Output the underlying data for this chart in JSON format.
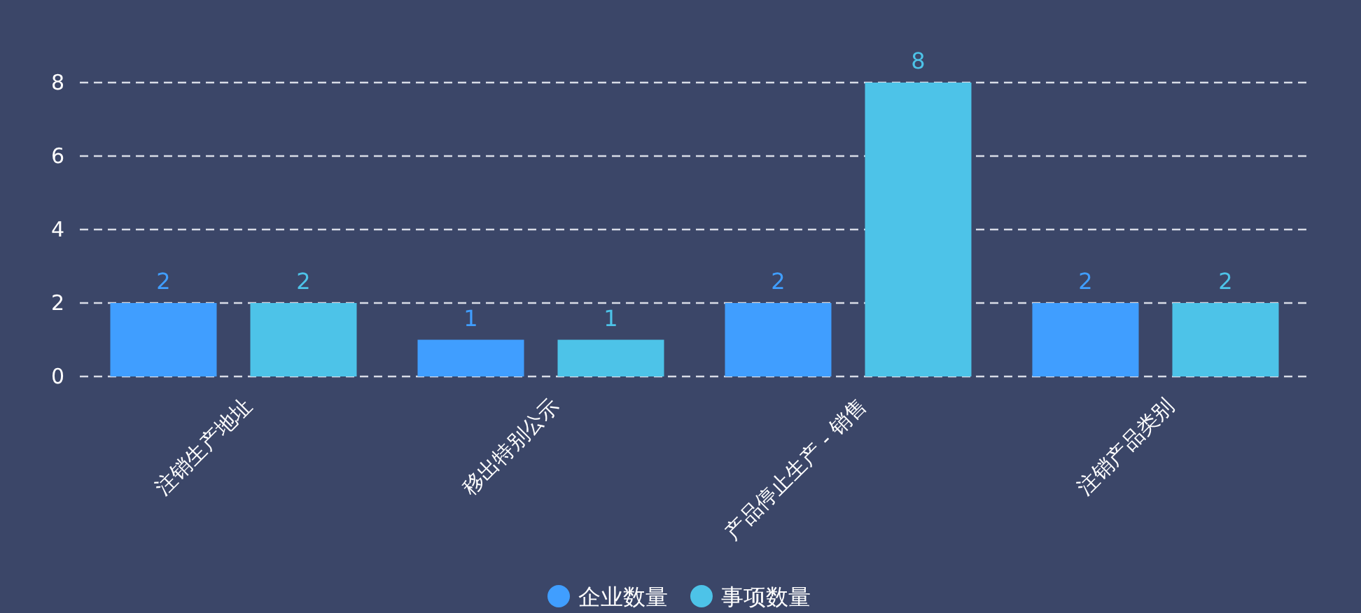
{
  "chart_data": {
    "type": "bar",
    "categories": [
      "注销生产地址",
      "移出特别公示",
      "产品停止生产 - 销售",
      "注销产品类别"
    ],
    "series": [
      {
        "name": "企业数量",
        "color": "#409eff",
        "values": [
          2,
          1,
          2,
          2
        ]
      },
      {
        "name": "事项数量",
        "color": "#4dc3e8",
        "values": [
          2,
          1,
          8,
          2
        ]
      }
    ],
    "ylim": [
      0,
      8
    ],
    "yticks": [
      0,
      2,
      4,
      6,
      8
    ],
    "grid": "y",
    "legend": "bottom",
    "data_labels": true
  }
}
